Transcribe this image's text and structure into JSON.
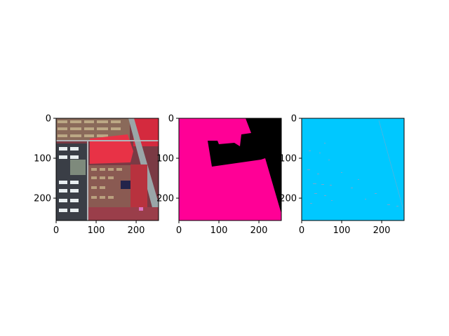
{
  "figure": {
    "panels": [
      {
        "name": "false-color-satellite-image",
        "x_ticks": [
          "0",
          "100",
          "200"
        ],
        "y_ticks": [
          "0",
          "100",
          "200"
        ],
        "x_tick_values": [
          0,
          100,
          200
        ],
        "y_tick_values": [
          0,
          100,
          200
        ],
        "extent": [
          0,
          256
        ]
      },
      {
        "name": "segmentation-mask",
        "x_ticks": [
          "0",
          "100",
          "200"
        ],
        "y_ticks": [
          "0",
          "100",
          "200"
        ],
        "x_tick_values": [
          0,
          100,
          200
        ],
        "y_tick_values": [
          0,
          100,
          200
        ],
        "extent": [
          0,
          256
        ],
        "colors": {
          "foreground": "#ff0096",
          "background": "#000000"
        }
      },
      {
        "name": "prediction-map",
        "x_ticks": [
          "0",
          "100",
          "200"
        ],
        "y_ticks": [
          "0",
          "100",
          "200"
        ],
        "x_tick_values": [
          0,
          100,
          200
        ],
        "y_tick_values": [
          0,
          100,
          200
        ],
        "extent": [
          0,
          256
        ],
        "colors": {
          "fill": "#00c8ff",
          "speckle": "#a0a0c0"
        }
      }
    ]
  }
}
